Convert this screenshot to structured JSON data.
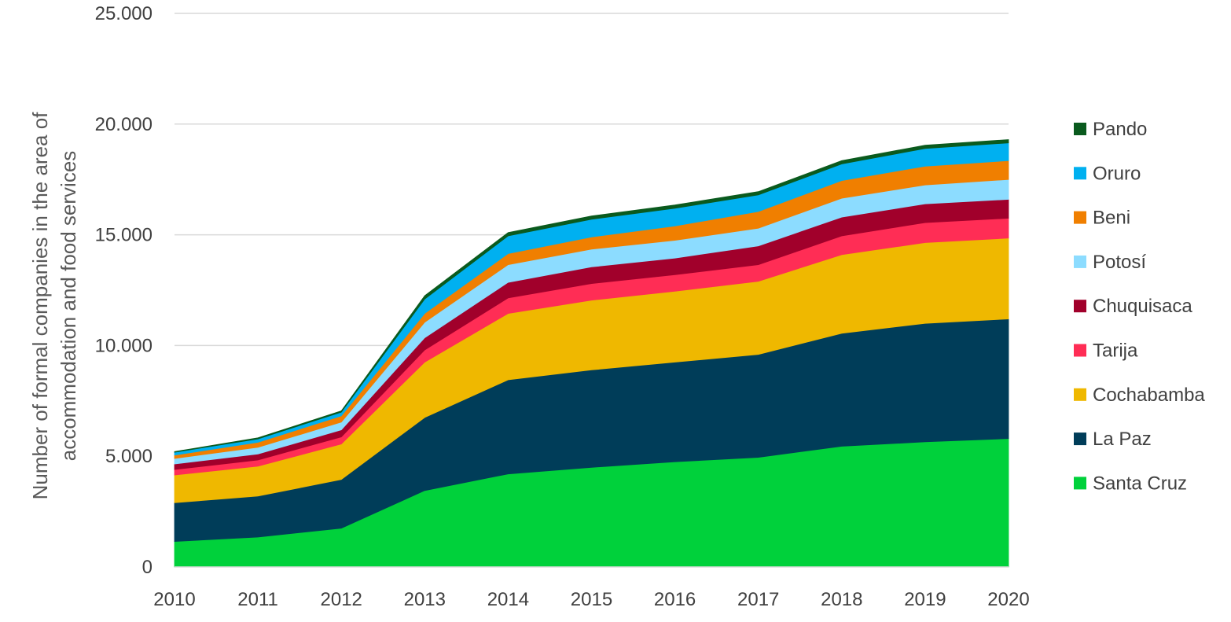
{
  "chart_data": {
    "type": "area",
    "stacked": true,
    "ylabel_lines": [
      "Number of formal companies in the area of",
      "accommodation and food services"
    ],
    "xlabel": "",
    "x": [
      "2010",
      "2011",
      "2012",
      "2013",
      "2014",
      "2015",
      "2016",
      "2017",
      "2018",
      "2019",
      "2020"
    ],
    "ylim": [
      0,
      25000
    ],
    "yticks": [
      {
        "value": 0,
        "label": "0"
      },
      {
        "value": 5000,
        "label": "5.000"
      },
      {
        "value": 10000,
        "label": "10.000"
      },
      {
        "value": 15000,
        "label": "15.000"
      },
      {
        "value": 20000,
        "label": "20.000"
      },
      {
        "value": 25000,
        "label": "25.000"
      }
    ],
    "grid": true,
    "legend_position": "right",
    "series": [
      {
        "name": "Santa Cruz",
        "color": "#00d13b",
        "values": [
          1150,
          1350,
          1750,
          3450,
          4200,
          4500,
          4750,
          4950,
          5450,
          5650,
          5800
        ]
      },
      {
        "name": "La Paz",
        "color": "#003d59",
        "values": [
          1750,
          1850,
          2200,
          3300,
          4250,
          4400,
          4500,
          4650,
          5100,
          5350,
          5400
        ]
      },
      {
        "name": "Cochabamba",
        "color": "#efb800",
        "values": [
          1250,
          1350,
          1600,
          2500,
          3000,
          3150,
          3200,
          3300,
          3550,
          3650,
          3650
        ]
      },
      {
        "name": "Tarija",
        "color": "#ff2d55",
        "values": [
          250,
          280,
          320,
          550,
          700,
          750,
          750,
          750,
          850,
          900,
          900
        ]
      },
      {
        "name": "Chuquisaca",
        "color": "#a1002b",
        "values": [
          250,
          270,
          320,
          550,
          700,
          750,
          750,
          850,
          850,
          850,
          850
        ]
      },
      {
        "name": "Potosí",
        "color": "#8cdcff",
        "values": [
          250,
          300,
          350,
          700,
          800,
          800,
          800,
          800,
          850,
          850,
          900
        ]
      },
      {
        "name": "Beni",
        "color": "#f07f00",
        "values": [
          150,
          230,
          280,
          400,
          500,
          550,
          650,
          750,
          800,
          850,
          850
        ]
      },
      {
        "name": "Oruro",
        "color": "#00b0f0",
        "values": [
          130,
          150,
          170,
          650,
          800,
          800,
          800,
          750,
          750,
          800,
          800
        ]
      },
      {
        "name": "Pando",
        "color": "#0a5a1e",
        "values": [
          30,
          50,
          60,
          150,
          150,
          150,
          150,
          150,
          150,
          150,
          150
        ]
      }
    ]
  }
}
